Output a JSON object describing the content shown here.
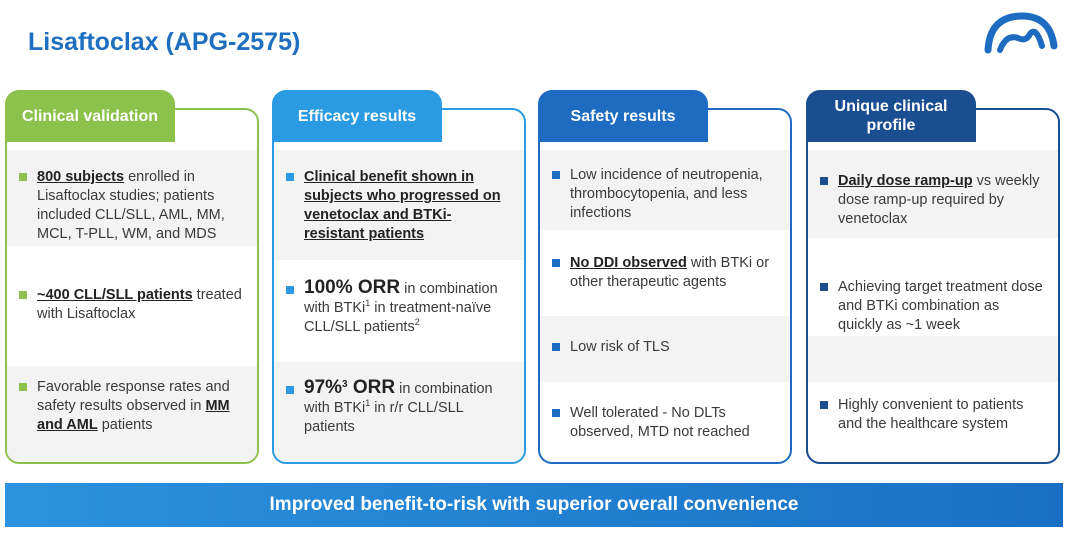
{
  "title": "Lisaftoclax (APG-2575)",
  "colors": {
    "green": "#8cc24b",
    "lightblue": "#2a9be3",
    "blue": "#1d6cc2",
    "navy": "#1b4e91",
    "title": "#1e6fc0"
  },
  "columns": [
    {
      "header": "Clinical validation",
      "items": [
        {
          "bold": "800 subjects",
          "rest": " enrolled in Lisaftoclax studies; patients included CLL/SLL, AML, MM, MCL, T-PLL, WM, and MDS"
        },
        {
          "bold": "~400 CLL/SLL patients",
          "rest": " treated with Lisaftoclax"
        },
        {
          "pre": "Favorable response rates and safety results observed in ",
          "bold": "MM and AML",
          "rest": " patients"
        }
      ]
    },
    {
      "header": "Efficacy results",
      "items": [
        {
          "bold": "Clinical benefit shown in subjects who progressed on venetoclax and BTKi-resistant patients"
        },
        {
          "big": "100% ORR",
          "rest1": " in combination with BTKi",
          "sup1": "1",
          "rest2": " in treatment-naïve CLL/SLL patients",
          "sup2": "2"
        },
        {
          "big": "97%",
          "bigsup": "3",
          "big2": " ORR",
          "rest1": " in combination with BTKi",
          "sup1": "1",
          "rest2": " in r/r CLL/SLL patients"
        }
      ]
    },
    {
      "header": "Safety results",
      "items": [
        {
          "text": "Low incidence of neutropenia, thrombocytopenia, and less infections"
        },
        {
          "bold": "No DDI observed",
          "rest": " with BTKi or other therapeutic agents"
        },
        {
          "text": "Low risk of TLS"
        },
        {
          "text": "Well tolerated - No DLTs observed, MTD not reached"
        }
      ]
    },
    {
      "header": "Unique clinical profile",
      "items": [
        {
          "bold": "Daily dose ramp-up",
          "rest": " vs weekly dose ramp-up required by venetoclax"
        },
        {
          "text": "Achieving target treatment dose and BTKi combination as quickly as ~1 week"
        },
        {
          "text": "Highly convenient to patients and the healthcare system"
        }
      ]
    }
  ],
  "banner": "Improved benefit-to-risk with superior overall convenience"
}
